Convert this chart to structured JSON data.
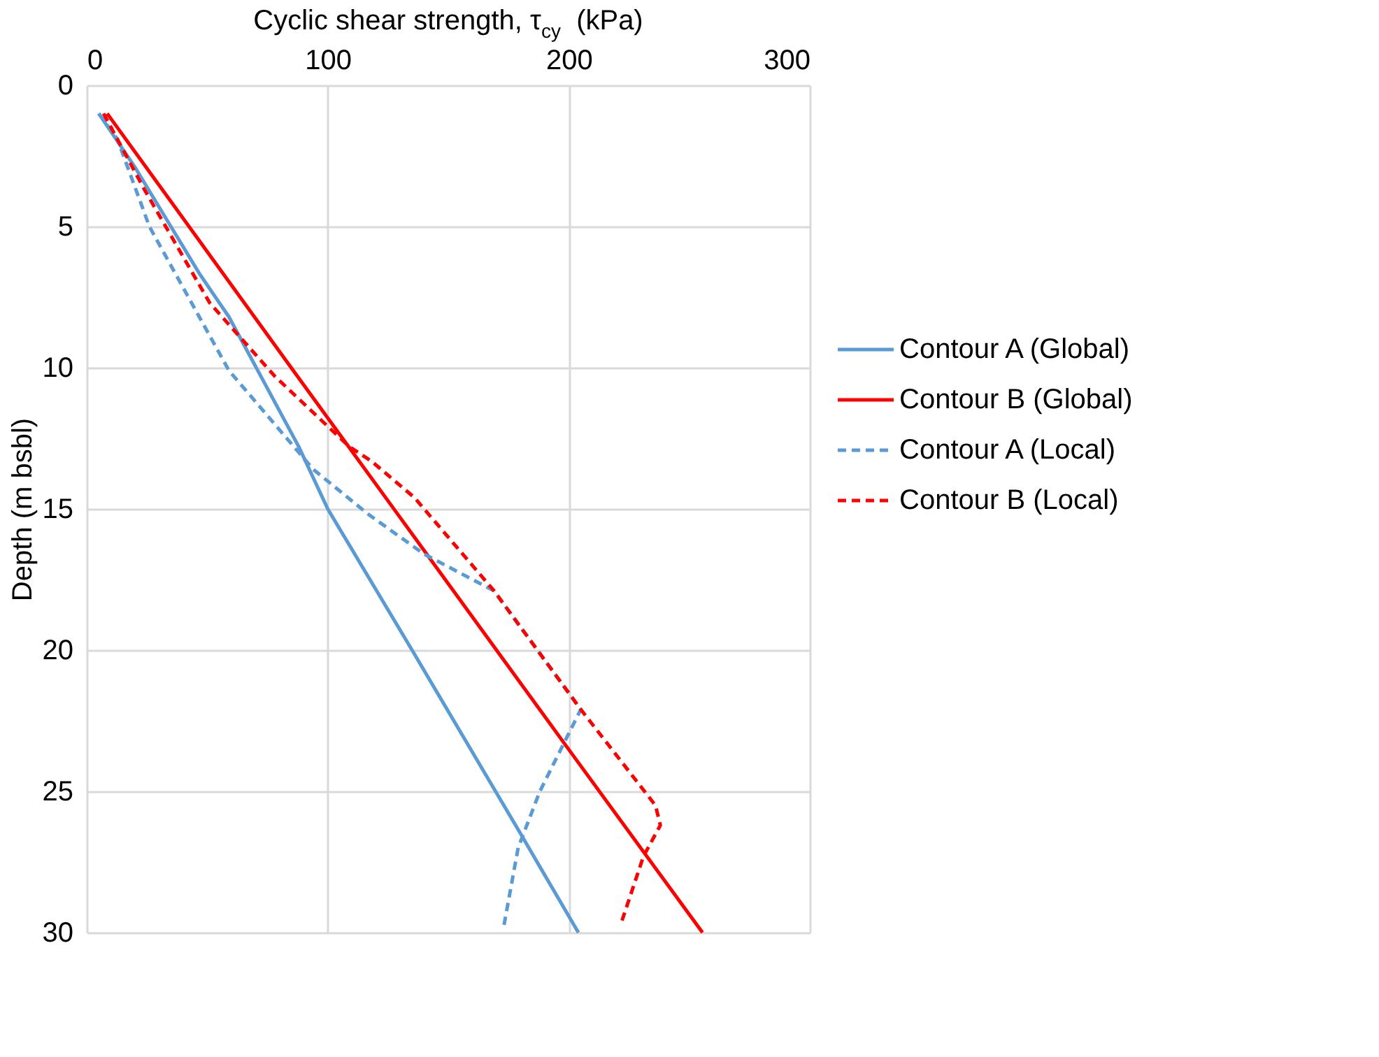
{
  "chart_data": {
    "type": "line",
    "xlabel": "Cyclic shear strength, τ$_{cy}$  (kPa)",
    "ylabel": "Depth (m bsbl)",
    "xlim": [
      0,
      300
    ],
    "xticks": [
      0,
      100,
      200,
      300
    ],
    "ylim": [
      30,
      0
    ],
    "yticks": [
      0,
      5,
      10,
      15,
      20,
      25,
      30
    ],
    "grid": true,
    "legend": "right",
    "series": [
      {
        "name": "Contour A (Global)",
        "color": "#5b9bd5",
        "line_style": "solid",
        "x": [
          5,
          20,
          47,
          59,
          88,
          100,
          135,
          180,
          204
        ],
        "values": [
          1,
          2.9,
          6.7,
          8.2,
          12.8,
          15,
          20,
          26.5,
          30
        ]
      },
      {
        "name": "Contour B (Global)",
        "color": "#ff0000",
        "line_style": "solid",
        "x": [
          8.5,
          84,
          130,
          199,
          255.5
        ],
        "values": [
          1,
          9.9,
          15.3,
          23.4,
          30
        ]
      },
      {
        "name": "Contour A (Local)",
        "color": "#5b9bd5",
        "line_style": "dashed",
        "x": [
          5,
          12.7,
          26,
          59,
          94,
          117,
          140,
          169,
          205,
          188,
          179,
          173
        ],
        "values": [
          1,
          1.9,
          5,
          10.1,
          13.6,
          15.2,
          16.6,
          17.9,
          22.1,
          25,
          27,
          29.8
        ]
      },
      {
        "name": "Contour B (Local)",
        "color": "#ff0000",
        "line_style": "dashed",
        "x": [
          7,
          24,
          51,
          78,
          109,
          118,
          136,
          169,
          205,
          236,
          238,
          231,
          222
        ],
        "values": [
          1,
          3.7,
          7.7,
          10.3,
          12.8,
          13.3,
          14.6,
          17.9,
          22.1,
          25.5,
          26.2,
          27.3,
          29.6
        ]
      }
    ]
  }
}
